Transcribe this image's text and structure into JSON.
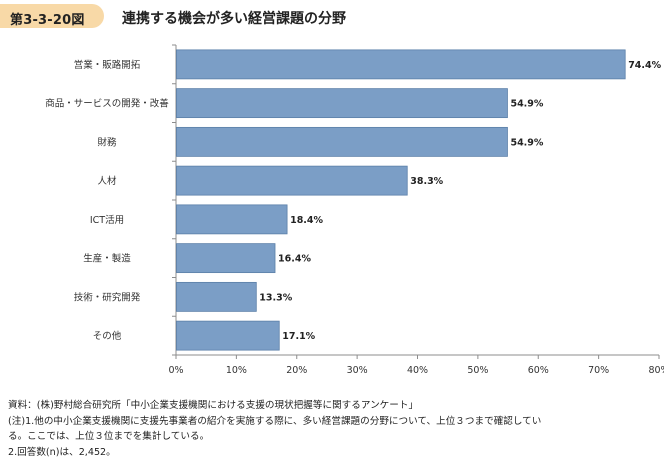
{
  "figure": {
    "number": "第3-3-20図",
    "title": "連携する機会が多い経営課題の分野"
  },
  "chart_data": {
    "type": "bar",
    "orientation": "horizontal",
    "categories": [
      "営業・販路開拓",
      "商品・サービスの開発・改善",
      "財務",
      "人材",
      "ICT活用",
      "生産・製造",
      "技術・研究開発",
      "その他"
    ],
    "values": [
      74.4,
      54.9,
      54.9,
      38.3,
      18.4,
      16.4,
      13.3,
      17.1
    ],
    "value_labels": [
      "74.4%",
      "54.9%",
      "54.9%",
      "38.3%",
      "18.4%",
      "16.4%",
      "13.3%",
      "17.1%"
    ],
    "xlim": [
      0,
      80
    ],
    "x_ticks": [
      0,
      10,
      20,
      30,
      40,
      50,
      60,
      70,
      80
    ],
    "x_tick_labels": [
      "0%",
      "10%",
      "20%",
      "30%",
      "40%",
      "50%",
      "60%",
      "70%",
      "80%"
    ],
    "grid": false,
    "bar_color": "#7b9ec6",
    "bar_edge_color": "#5b7fa8"
  },
  "notes": {
    "source": "資料：(株)野村総合研究所「中小企業支援機関における支援の現状把握等に関するアンケート」",
    "note1_line1": "(注)1.他の中小企業支援機関に支援先事業者の紹介を実施する際に、多い経営課題の分野について、上位３つまで確認してい",
    "note1_line2": "る。ここでは、上位３位までを集計している。",
    "note2": "2.回答数(n)は、2,452。"
  }
}
